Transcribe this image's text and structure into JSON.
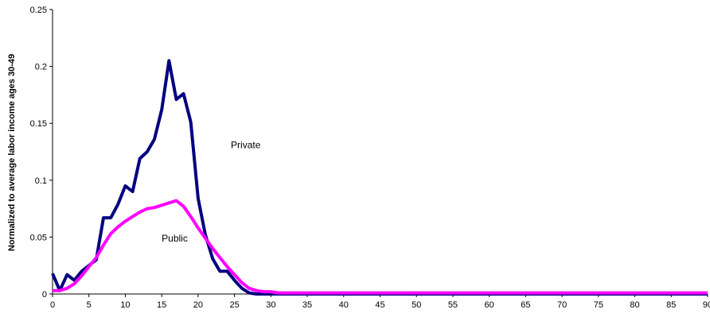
{
  "chart_data": {
    "type": "line",
    "title": "",
    "xlabel": "",
    "ylabel": "Normalized to average labor income ages 30-49",
    "xlim": [
      0,
      90
    ],
    "ylim": [
      0,
      0.25
    ],
    "grid": false,
    "legend": "none",
    "x_ticks": [
      "0",
      "5",
      "10",
      "15",
      "20",
      "25",
      "30",
      "35",
      "40",
      "45",
      "50",
      "55",
      "60",
      "65",
      "70",
      "75",
      "80",
      "85",
      "90"
    ],
    "y_ticks": [
      "0",
      "0.05",
      "0.1",
      "0.15",
      "0.2",
      "0.25"
    ],
    "x": [
      0,
      1,
      2,
      3,
      4,
      5,
      6,
      7,
      8,
      9,
      10,
      11,
      12,
      13,
      14,
      15,
      16,
      17,
      18,
      19,
      20,
      21,
      22,
      23,
      24,
      25,
      26,
      27,
      28,
      29,
      30,
      31,
      32,
      33,
      34,
      35,
      36,
      37,
      38,
      39,
      40,
      41,
      42,
      43,
      44,
      45,
      46,
      47,
      48,
      49,
      50,
      51,
      52,
      53,
      54,
      55,
      56,
      57,
      58,
      59,
      60,
      61,
      62,
      63,
      64,
      65,
      66,
      67,
      68,
      69,
      70,
      71,
      72,
      73,
      74,
      75,
      76,
      77,
      78,
      79,
      80,
      81,
      82,
      83,
      84,
      85,
      86,
      87,
      88,
      89,
      90
    ],
    "series": [
      {
        "name": "Private",
        "color": "#000080",
        "values": [
          0.018,
          0.003,
          0.017,
          0.012,
          0.02,
          0.025,
          0.03,
          0.067,
          0.067,
          0.079,
          0.095,
          0.09,
          0.119,
          0.125,
          0.136,
          0.162,
          0.205,
          0.171,
          0.176,
          0.151,
          0.084,
          0.052,
          0.031,
          0.02,
          0.02,
          0.012,
          0.005,
          0.001,
          0,
          0,
          0,
          0,
          0,
          0,
          0,
          0,
          0,
          0,
          0,
          0,
          0,
          0,
          0,
          0,
          0,
          0,
          0,
          0,
          0,
          0,
          0,
          0,
          0,
          0,
          0,
          0,
          0,
          0,
          0,
          0,
          0,
          0,
          0,
          0,
          0,
          0,
          0,
          0,
          0,
          0,
          0,
          0,
          0,
          0,
          0,
          0,
          0,
          0,
          0,
          0,
          0,
          0,
          0,
          0,
          0,
          0,
          0,
          0,
          0,
          0,
          0
        ]
      },
      {
        "name": "Public",
        "color": "#ff00ff",
        "values": [
          0.003,
          0.003,
          0.005,
          0.009,
          0.016,
          0.024,
          0.032,
          0.043,
          0.053,
          0.059,
          0.064,
          0.068,
          0.072,
          0.075,
          0.076,
          0.078,
          0.08,
          0.082,
          0.077,
          0.068,
          0.058,
          0.049,
          0.04,
          0.032,
          0.024,
          0.017,
          0.01,
          0.005,
          0.003,
          0.002,
          0.002,
          0.001,
          0.001,
          0.001,
          0.001,
          0.001,
          0.001,
          0.001,
          0.001,
          0.001,
          0.001,
          0.001,
          0.001,
          0.001,
          0.001,
          0.001,
          0.001,
          0.001,
          0.001,
          0.001,
          0.001,
          0.001,
          0.001,
          0.001,
          0.001,
          0.001,
          0.001,
          0.001,
          0.001,
          0.001,
          0.001,
          0.001,
          0.001,
          0.001,
          0.001,
          0.001,
          0.001,
          0.001,
          0.001,
          0.001,
          0.001,
          0.001,
          0.001,
          0.001,
          0.001,
          0.001,
          0.001,
          0.001,
          0.001,
          0.001,
          0.001,
          0.001,
          0.001,
          0.001,
          0.001,
          0.001,
          0.001,
          0.001,
          0.001,
          0.001,
          0.001
        ]
      }
    ],
    "annotations": [
      {
        "text": "Private",
        "x": 24.5,
        "y": 0.128
      },
      {
        "text": "Public",
        "x": 15,
        "y": 0.046
      }
    ]
  }
}
